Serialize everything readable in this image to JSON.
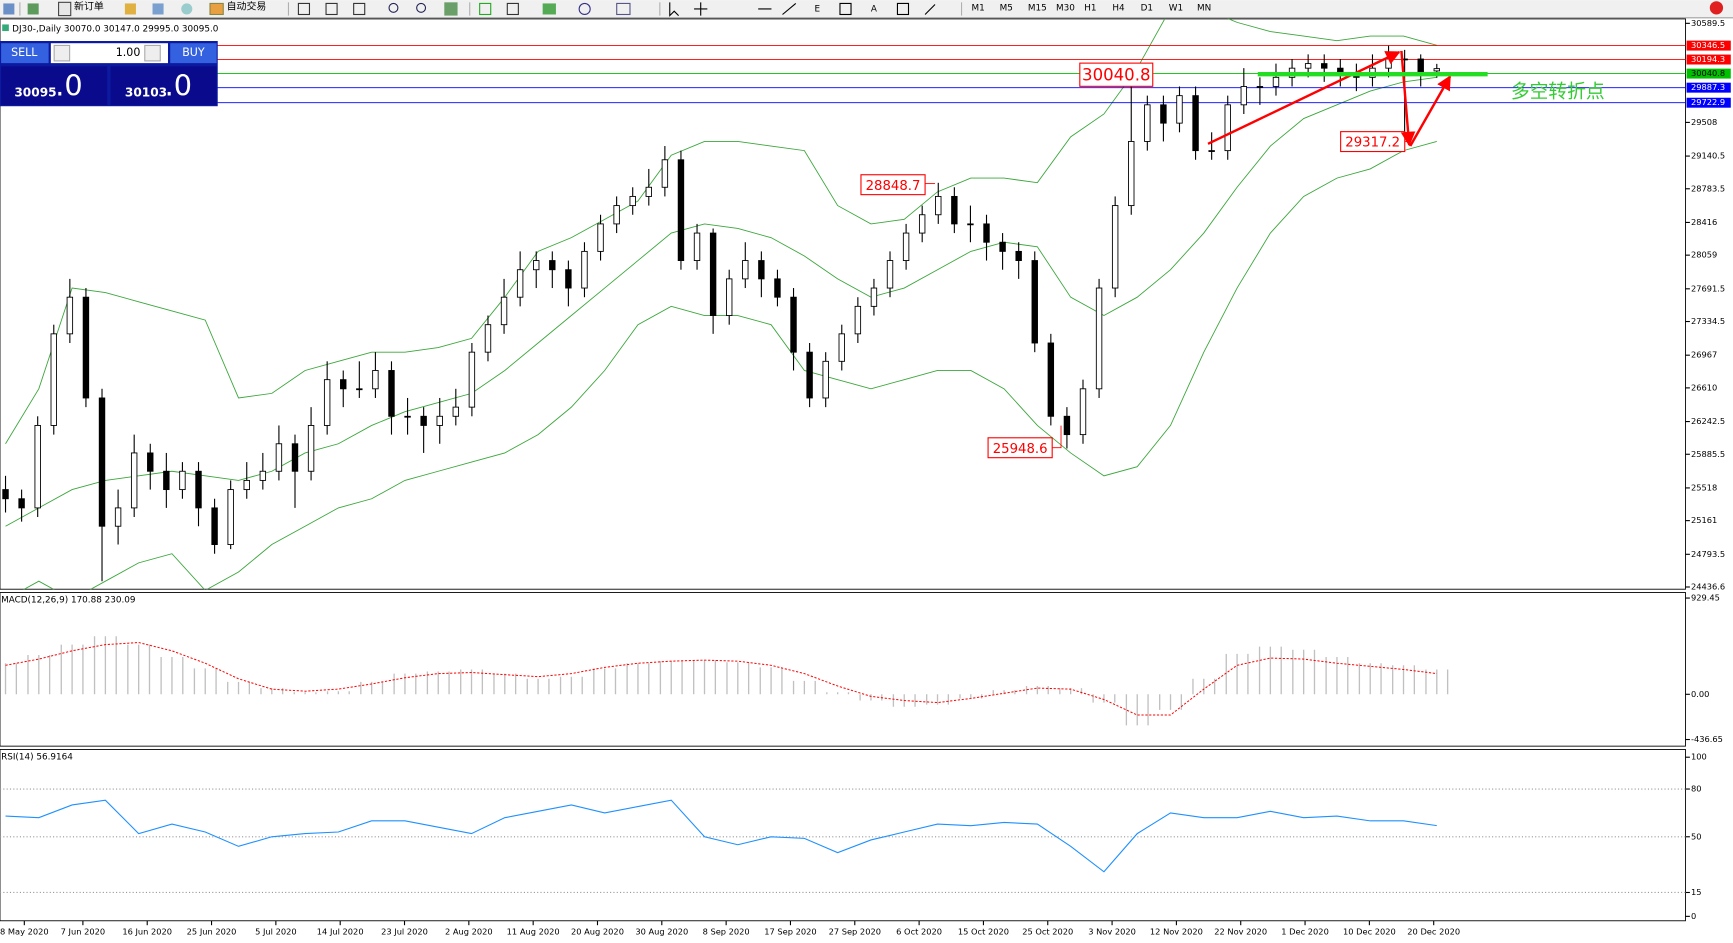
{
  "toolbar": {
    "new_order": "新订单",
    "auto_trade": "自动交易",
    "timeframes": [
      "M1",
      "M5",
      "M15",
      "M30",
      "H1",
      "H4",
      "D1",
      "W1",
      "MN"
    ]
  },
  "trade_panel": {
    "sell": "SELL",
    "volume": "1.00",
    "buy": "BUY",
    "bid_main": "30095",
    "bid_tail": ".0",
    "ask_main": "30103",
    "ask_tail": ".0"
  },
  "chart_data": [
    {
      "type": "candlestick",
      "title": "DJ30-,Daily  30070.0 30147.0 29995.0 30095.0",
      "color": "#000000",
      "candles": [
        [
          25500,
          25650,
          25250,
          25400
        ],
        [
          25400,
          25500,
          25150,
          25300
        ],
        [
          25300,
          26300,
          25200,
          26200
        ],
        [
          26200,
          27300,
          26100,
          27200
        ],
        [
          27200,
          27800,
          27100,
          27600
        ],
        [
          27600,
          27700,
          26400,
          26500
        ],
        [
          26500,
          26600,
          24500,
          25100
        ],
        [
          25100,
          25500,
          24900,
          25300
        ],
        [
          25300,
          26100,
          25200,
          25900
        ],
        [
          25900,
          26000,
          25500,
          25700
        ],
        [
          25700,
          25900,
          25300,
          25500
        ],
        [
          25500,
          25800,
          25400,
          25700
        ],
        [
          25700,
          25800,
          25100,
          25300
        ],
        [
          25300,
          25400,
          24800,
          24900
        ],
        [
          24900,
          25600,
          24850,
          25500
        ],
        [
          25500,
          25800,
          25400,
          25600
        ],
        [
          25600,
          25900,
          25500,
          25700
        ],
        [
          25700,
          26200,
          25600,
          26000
        ],
        [
          26000,
          26100,
          25300,
          25700
        ],
        [
          25700,
          26400,
          25600,
          26200
        ],
        [
          26200,
          26900,
          26100,
          26700
        ],
        [
          26700,
          26800,
          26400,
          26600
        ],
        [
          26600,
          26900,
          26500,
          26600
        ],
        [
          26600,
          27000,
          26500,
          26800
        ],
        [
          26800,
          26900,
          26100,
          26300
        ],
        [
          26300,
          26500,
          26100,
          26300
        ],
        [
          26300,
          26400,
          25900,
          26200
        ],
        [
          26200,
          26500,
          26000,
          26300
        ],
        [
          26300,
          26600,
          26200,
          26400
        ],
        [
          26400,
          27100,
          26300,
          27000
        ],
        [
          27000,
          27400,
          26900,
          27300
        ],
        [
          27300,
          27800,
          27200,
          27600
        ],
        [
          27600,
          28100,
          27500,
          27900
        ],
        [
          27900,
          28100,
          27700,
          28000
        ],
        [
          28000,
          28100,
          27700,
          27900
        ],
        [
          27900,
          28000,
          27500,
          27700
        ],
        [
          27700,
          28200,
          27600,
          28100
        ],
        [
          28100,
          28500,
          28000,
          28400
        ],
        [
          28400,
          28700,
          28300,
          28600
        ],
        [
          28600,
          28800,
          28500,
          28700
        ],
        [
          28700,
          29000,
          28600,
          28800
        ],
        [
          28800,
          29250,
          28700,
          29100
        ],
        [
          29100,
          29200,
          27900,
          28000
        ],
        [
          28000,
          28400,
          27900,
          28300
        ],
        [
          28300,
          28350,
          27200,
          27400
        ],
        [
          27400,
          27900,
          27300,
          27800
        ],
        [
          27800,
          28200,
          27700,
          28000
        ],
        [
          28000,
          28100,
          27600,
          27800
        ],
        [
          27800,
          27900,
          27500,
          27600
        ],
        [
          27600,
          27700,
          26800,
          27000
        ],
        [
          27000,
          27100,
          26400,
          26500
        ],
        [
          26500,
          27000,
          26400,
          26900
        ],
        [
          26900,
          27300,
          26800,
          27200
        ],
        [
          27200,
          27600,
          27100,
          27500
        ],
        [
          27500,
          27800,
          27400,
          27700
        ],
        [
          27700,
          28100,
          27600,
          28000
        ],
        [
          28000,
          28400,
          27900,
          28300
        ],
        [
          28300,
          28600,
          28200,
          28500
        ],
        [
          28500,
          28848.7,
          28400,
          28700
        ],
        [
          28700,
          28800,
          28300,
          28400
        ],
        [
          28400,
          28600,
          28200,
          28400
        ],
        [
          28400,
          28500,
          28000,
          28200
        ],
        [
          28200,
          28300,
          27900,
          28100
        ],
        [
          28100,
          28200,
          27800,
          28000
        ],
        [
          28000,
          28100,
          27000,
          27100
        ],
        [
          27100,
          27200,
          26200,
          26300
        ],
        [
          26300,
          26400,
          25948.6,
          26100
        ],
        [
          26100,
          26700,
          26000,
          26600
        ],
        [
          26600,
          27800,
          26500,
          27700
        ],
        [
          27700,
          28700,
          27600,
          28600
        ],
        [
          28600,
          30040.8,
          28500,
          29300
        ],
        [
          29300,
          29800,
          29200,
          29700
        ],
        [
          29700,
          29800,
          29300,
          29500
        ],
        [
          29500,
          29900,
          29400,
          29800
        ],
        [
          29800,
          29900,
          29100,
          29200
        ],
        [
          29200,
          29400,
          29100,
          29200
        ],
        [
          29200,
          29800,
          29100,
          29700
        ],
        [
          29700,
          30100,
          29600,
          29900
        ],
        [
          29900,
          30000,
          29700,
          29900
        ],
        [
          29900,
          30150,
          29800,
          30000
        ],
        [
          30000,
          30200,
          29900,
          30100
        ],
        [
          30100,
          30250,
          30000,
          30150
        ],
        [
          30150,
          30250,
          29950,
          30100
        ],
        [
          30100,
          30200,
          29900,
          30050
        ],
        [
          30050,
          30150,
          29850,
          30000
        ],
        [
          30000,
          30250,
          29900,
          30100
        ],
        [
          30100,
          30346.5,
          30000,
          30200
        ],
        [
          30200,
          30300,
          29317.2,
          30200
        ],
        [
          30200,
          30250,
          29900,
          30050
        ],
        [
          30070,
          30147,
          29995,
          30095
        ]
      ],
      "bands": {
        "color": "#3aa63a",
        "upper": [
          26000,
          26600,
          27700,
          27650,
          27550,
          27450,
          27350,
          26500,
          26550,
          26800,
          26900,
          27000,
          27000,
          27050,
          27150,
          27600,
          28100,
          28250,
          28450,
          28650,
          29150,
          29300,
          29300,
          29250,
          29200,
          28600,
          28400,
          28450,
          28750,
          28900,
          28900,
          28850,
          29350,
          29600,
          30100,
          30750,
          30750,
          30600,
          30500,
          30450,
          30400,
          30450,
          30450,
          30350
        ],
        "middle": [
          25100,
          25300,
          25500,
          25600,
          25650,
          25700,
          25650,
          25600,
          25700,
          25900,
          26000,
          26200,
          26350,
          26450,
          26550,
          26800,
          27100,
          27400,
          27700,
          28000,
          28300,
          28400,
          28350,
          28250,
          28050,
          27800,
          27600,
          27700,
          27900,
          28100,
          28200,
          28150,
          27600,
          27400,
          27600,
          27900,
          28300,
          28800,
          29250,
          29550,
          29700,
          29850,
          29950,
          30000
        ],
        "lower": [
          24300,
          24500,
          24300,
          24500,
          24700,
          24800,
          24400,
          24600,
          24900,
          25100,
          25300,
          25400,
          25600,
          25700,
          25800,
          25900,
          26100,
          26400,
          26800,
          27300,
          27500,
          27400,
          27400,
          27300,
          26800,
          26700,
          26600,
          26700,
          26800,
          26800,
          26600,
          26200,
          25900,
          25650,
          25750,
          26200,
          27000,
          27700,
          28300,
          28700,
          28900,
          29000,
          29200,
          29300
        ]
      },
      "ylim": [
        24436.6,
        30589.5
      ],
      "yticks": [
        {
          "value": 30589.5,
          "label": "30589.5"
        },
        29508,
        {
          "value": 29140.5,
          "label": "29140.5"
        },
        {
          "value": 28783.5,
          "label": "28783.5"
        },
        28416,
        28059,
        {
          "value": 27691.5,
          "label": "27691.5"
        },
        {
          "value": 27334.5,
          "label": "27334.5"
        },
        26967,
        26610,
        {
          "value": 26242.5,
          "label": "26242.5"
        },
        {
          "value": 25885.5,
          "label": "25885.5"
        },
        25518,
        25161,
        {
          "value": 24793.5,
          "label": "24793.5"
        },
        24436.6
      ],
      "levels": [
        {
          "value": 30346.5,
          "color": "#ff0000"
        },
        {
          "value": 30194.3,
          "color": "#ff0000"
        },
        {
          "value": 30040.8,
          "color": "#00c000"
        },
        {
          "value": 29887.3,
          "color": "#0000ff"
        },
        {
          "value": 29722.9,
          "color": "#0000ff"
        }
      ],
      "annotations": [
        30040.8,
        28848.7,
        25948.6,
        29317.2
      ],
      "note": "多空转折点",
      "x_labels": [
        "8 May 2020",
        "7 Jun 2020",
        "16 Jun 2020",
        "25 Jun 2020",
        "5 Jul 2020",
        "14 Jul 2020",
        "23 Jul 2020",
        "2 Aug 2020",
        "11 Aug 2020",
        "20 Aug 2020",
        "30 Aug 2020",
        "8 Sep 2020",
        "17 Sep 2020",
        "27 Sep 2020",
        "6 Oct 2020",
        "15 Oct 2020",
        "25 Oct 2020",
        "3 Nov 2020",
        "12 Nov 2020",
        "22 Nov 2020",
        "1 Dec 2020",
        "10 Dec 2020",
        "20 Dec 2020"
      ]
    },
    {
      "type": "macd",
      "title": "MACD(12,26,9) 170.88 230.09",
      "color": "#c0c0c0",
      "signal_color": "#ff0000",
      "histogram": [
        300,
        380,
        480,
        560,
        480,
        360,
        250,
        120,
        60,
        20,
        30,
        120,
        200,
        220,
        240,
        200,
        150,
        170,
        250,
        300,
        320,
        330,
        310,
        260,
        130,
        20,
        -60,
        -120,
        -100,
        -40,
        40,
        80,
        60,
        -80,
        -300,
        -150,
        150,
        390,
        460,
        430,
        360,
        300,
        280,
        240
      ],
      "signal": [
        280,
        340,
        420,
        480,
        500,
        420,
        300,
        150,
        50,
        30,
        50,
        100,
        160,
        200,
        210,
        190,
        170,
        200,
        260,
        300,
        320,
        330,
        320,
        280,
        200,
        80,
        -20,
        -60,
        -80,
        -40,
        10,
        60,
        50,
        -50,
        -200,
        -200,
        50,
        280,
        350,
        340,
        300,
        270,
        240,
        200
      ],
      "ylim": [
        -436.65,
        929.45
      ],
      "yticks": [
        929.45,
        {
          "value": 0,
          "label": "0.00"
        },
        -436.65
      ]
    },
    {
      "type": "line",
      "title": "RSI(14) 56.9164",
      "color": "#1e90ff",
      "grid": true,
      "values": [
        63,
        62,
        70,
        73,
        52,
        58,
        53,
        44,
        50,
        52,
        53,
        60,
        60,
        56,
        52,
        62,
        66,
        70,
        65,
        69,
        73,
        50,
        45,
        50,
        49,
        40,
        48,
        53,
        58,
        57,
        59,
        58,
        44,
        28,
        52,
        65,
        62,
        62,
        66,
        62,
        63,
        60,
        60,
        57
      ],
      "ylim": [
        0,
        100
      ],
      "yticks": [
        100,
        80,
        50,
        15,
        0
      ]
    }
  ]
}
